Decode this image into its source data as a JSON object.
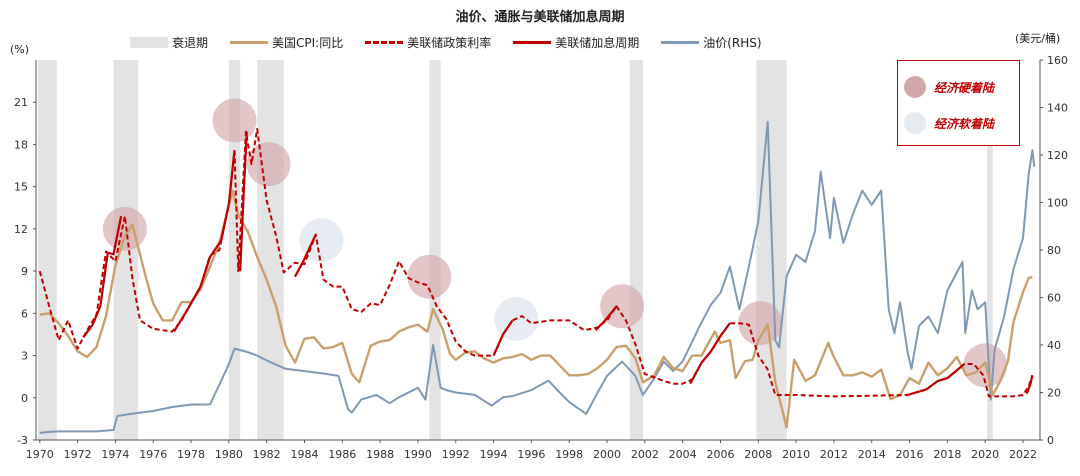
{
  "title": "油价、通胀与美联储加息周期",
  "units": {
    "left": "(%)",
    "right": "(美元/桶)"
  },
  "legend": [
    {
      "label": "衰退期",
      "kind": "bar",
      "color": "#e3e3e3"
    },
    {
      "label": "美国CPI:同比",
      "kind": "line",
      "color": "#c9a06c"
    },
    {
      "label": "美联储政策利率",
      "kind": "dash",
      "color": "#c00000"
    },
    {
      "label": "美联储加息周期",
      "kind": "line",
      "color": "#c00000"
    },
    {
      "label": "油价(RHS)",
      "kind": "line",
      "color": "#8099b3"
    }
  ],
  "annotation": {
    "hard_landing": "经济硬着陆",
    "soft_landing": "经济软着陆",
    "hard_color": "#d2a7ab",
    "soft_color": "#e6ebf1"
  },
  "chart_data": {
    "type": "line",
    "title": "油价、通胀与美联储加息周期",
    "x_range": [
      1969.8,
      2022.9
    ],
    "x_ticks": [
      "1970",
      "1972",
      "1974",
      "1976",
      "1978",
      "1980",
      "1982",
      "1984",
      "1986",
      "1988",
      "1990",
      "1992",
      "1994",
      "1996",
      "1998",
      "2000",
      "2002",
      "2004",
      "2006",
      "2008",
      "2010",
      "2012",
      "2014",
      "2016",
      "2018",
      "2020",
      "2022"
    ],
    "y_left": {
      "label": "(%)",
      "range": [
        -3,
        24
      ],
      "ticks": [
        -3,
        0,
        3,
        6,
        9,
        12,
        15,
        18,
        21
      ]
    },
    "y_right": {
      "label": "(美元/桶)",
      "range": [
        0,
        160
      ],
      "ticks": [
        0,
        20,
        40,
        60,
        80,
        100,
        120,
        140,
        160
      ]
    },
    "recessions": [
      [
        1969.9,
        1970.9
      ],
      [
        1973.9,
        1975.2
      ],
      [
        1980.0,
        1980.6
      ],
      [
        1981.5,
        1982.9
      ],
      [
        1990.6,
        1991.2
      ],
      [
        2001.2,
        2001.9
      ],
      [
        2007.9,
        2009.5
      ],
      [
        2020.1,
        2020.4
      ]
    ],
    "cpi_yoy": [
      [
        1970,
        5.9
      ],
      [
        1970.5,
        6
      ],
      [
        1971,
        5.3
      ],
      [
        1971.5,
        4.4
      ],
      [
        1972,
        3.3
      ],
      [
        1972.5,
        2.9
      ],
      [
        1973,
        3.6
      ],
      [
        1973.5,
        5.8
      ],
      [
        1974,
        9.4
      ],
      [
        1974.5,
        11.5
      ],
      [
        1974.9,
        12.3
      ],
      [
        1975.3,
        10.2
      ],
      [
        1975.6,
        8.6
      ],
      [
        1976,
        6.7
      ],
      [
        1976.5,
        5.5
      ],
      [
        1977,
        5.5
      ],
      [
        1977.5,
        6.8
      ],
      [
        1978,
        6.8
      ],
      [
        1978.5,
        7.7
      ],
      [
        1979,
        9.3
      ],
      [
        1979.5,
        11
      ],
      [
        1980.2,
        14.7
      ],
      [
        1980.5,
        13
      ],
      [
        1981,
        11.8
      ],
      [
        1981.5,
        10
      ],
      [
        1982,
        8.4
      ],
      [
        1982.5,
        6.5
      ],
      [
        1983,
        3.7
      ],
      [
        1983.5,
        2.5
      ],
      [
        1984,
        4.2
      ],
      [
        1984.5,
        4.3
      ],
      [
        1985,
        3.5
      ],
      [
        1985.5,
        3.6
      ],
      [
        1986,
        3.9
      ],
      [
        1986.5,
        1.7
      ],
      [
        1986.9,
        1.1
      ],
      [
        1987.5,
        3.7
      ],
      [
        1988,
        4
      ],
      [
        1988.5,
        4.1
      ],
      [
        1989,
        4.7
      ],
      [
        1989.5,
        5
      ],
      [
        1990,
        5.2
      ],
      [
        1990.5,
        4.7
      ],
      [
        1990.8,
        6.3
      ],
      [
        1991.3,
        4.9
      ],
      [
        1991.7,
        3.1
      ],
      [
        1992,
        2.7
      ],
      [
        1992.5,
        3.2
      ],
      [
        1993,
        3.3
      ],
      [
        1993.5,
        2.8
      ],
      [
        1994,
        2.5
      ],
      [
        1994.5,
        2.8
      ],
      [
        1995,
        2.9
      ],
      [
        1995.5,
        3.1
      ],
      [
        1996,
        2.7
      ],
      [
        1996.5,
        3
      ],
      [
        1997,
        3
      ],
      [
        1997.5,
        2.3
      ],
      [
        1998,
        1.6
      ],
      [
        1998.5,
        1.6
      ],
      [
        1999,
        1.7
      ],
      [
        1999.5,
        2.1
      ],
      [
        2000,
        2.7
      ],
      [
        2000.5,
        3.6
      ],
      [
        2001,
        3.7
      ],
      [
        2001.5,
        2.8
      ],
      [
        2001.9,
        1.1
      ],
      [
        2002.5,
        1.6
      ],
      [
        2003,
        2.9
      ],
      [
        2003.5,
        2.1
      ],
      [
        2004,
        1.9
      ],
      [
        2004.5,
        3
      ],
      [
        2005,
        3
      ],
      [
        2005.7,
        4.7
      ],
      [
        2006,
        3.9
      ],
      [
        2006.5,
        4.1
      ],
      [
        2006.8,
        1.4
      ],
      [
        2007.3,
        2.6
      ],
      [
        2007.7,
        2.7
      ],
      [
        2008,
        4.1
      ],
      [
        2008.5,
        5.2
      ],
      [
        2008.9,
        1.1
      ],
      [
        2009.5,
        -2.1
      ],
      [
        2009.9,
        2.7
      ],
      [
        2010.5,
        1.2
      ],
      [
        2011,
        1.6
      ],
      [
        2011.7,
        3.9
      ],
      [
        2012,
        2.9
      ],
      [
        2012.5,
        1.6
      ],
      [
        2013,
        1.6
      ],
      [
        2013.5,
        1.8
      ],
      [
        2014,
        1.5
      ],
      [
        2014.5,
        2
      ],
      [
        2015,
        -0.1
      ],
      [
        2015.5,
        0.2
      ],
      [
        2016,
        1.4
      ],
      [
        2016.5,
        1
      ],
      [
        2017,
        2.5
      ],
      [
        2017.5,
        1.6
      ],
      [
        2018,
        2.1
      ],
      [
        2018.5,
        2.9
      ],
      [
        2019,
        1.6
      ],
      [
        2019.5,
        1.8
      ],
      [
        2020,
        2.5
      ],
      [
        2020.4,
        0.2
      ],
      [
        2020.8,
        1.2
      ],
      [
        2021.2,
        2.6
      ],
      [
        2021.5,
        5.4
      ],
      [
        2022,
        7.5
      ],
      [
        2022.3,
        8.5
      ],
      [
        2022.5,
        8.6
      ]
    ],
    "policy_rate": [
      [
        1970,
        9
      ],
      [
        1970.5,
        6.5
      ],
      [
        1971,
        4.1
      ],
      [
        1971.5,
        5.5
      ],
      [
        1972,
        3.5
      ],
      [
        1972.5,
        4.8
      ],
      [
        1973,
        5.9
      ],
      [
        1973.5,
        10.4
      ],
      [
        1974,
        9.7
      ],
      [
        1974.5,
        12.9
      ],
      [
        1974.9,
        8.5
      ],
      [
        1975.3,
        5.5
      ],
      [
        1976,
        4.9
      ],
      [
        1977,
        4.7
      ],
      [
        1977.5,
        5.5
      ],
      [
        1978,
        6.7
      ],
      [
        1978.5,
        7.9
      ],
      [
        1979,
        10.1
      ],
      [
        1979.5,
        10.5
      ],
      [
        1980,
        13.8
      ],
      [
        1980.3,
        17.6
      ],
      [
        1980.5,
        9
      ],
      [
        1980.9,
        18.9
      ],
      [
        1981.2,
        16.6
      ],
      [
        1981.5,
        19.1
      ],
      [
        1982,
        14
      ],
      [
        1982.5,
        11.5
      ],
      [
        1982.9,
        8.9
      ],
      [
        1983.5,
        9.6
      ],
      [
        1984,
        9.5
      ],
      [
        1984.6,
        11.6
      ],
      [
        1985,
        8.4
      ],
      [
        1985.5,
        7.9
      ],
      [
        1986,
        7.9
      ],
      [
        1986.5,
        6.3
      ],
      [
        1987,
        6.1
      ],
      [
        1987.5,
        6.7
      ],
      [
        1988,
        6.6
      ],
      [
        1988.5,
        8
      ],
      [
        1989,
        9.7
      ],
      [
        1989.5,
        8.5
      ],
      [
        1990,
        8.2
      ],
      [
        1990.5,
        8
      ],
      [
        1991,
        6.5
      ],
      [
        1991.5,
        5.6
      ],
      [
        1992,
        4
      ],
      [
        1992.5,
        3.3
      ],
      [
        1993,
        3
      ],
      [
        1994,
        3
      ],
      [
        1994.5,
        4.5
      ],
      [
        1995,
        5.5
      ],
      [
        1995.5,
        5.8
      ],
      [
        1996,
        5.3
      ],
      [
        1997,
        5.5
      ],
      [
        1998,
        5.5
      ],
      [
        1998.8,
        4.8
      ],
      [
        1999.5,
        5
      ],
      [
        2000,
        5.5
      ],
      [
        2000.5,
        6.5
      ],
      [
        2001,
        5.5
      ],
      [
        2001.5,
        3.8
      ],
      [
        2002,
        1.7
      ],
      [
        2003,
        1.2
      ],
      [
        2003.5,
        1
      ],
      [
        2004,
        1
      ],
      [
        2004.5,
        1.3
      ],
      [
        2005,
        2.5
      ],
      [
        2005.5,
        3.3
      ],
      [
        2006,
        4.4
      ],
      [
        2006.5,
        5.3
      ],
      [
        2007,
        5.3
      ],
      [
        2007.5,
        5.2
      ],
      [
        2008,
        3
      ],
      [
        2008.5,
        2
      ],
      [
        2008.9,
        0.2
      ],
      [
        2010,
        0.2
      ],
      [
        2012,
        0.1
      ],
      [
        2015.9,
        0.2
      ],
      [
        2016.9,
        0.6
      ],
      [
        2017.5,
        1.2
      ],
      [
        2018,
        1.4
      ],
      [
        2018.9,
        2.4
      ],
      [
        2019.4,
        2.4
      ],
      [
        2019.9,
        1.6
      ],
      [
        2020.2,
        0.1
      ],
      [
        2021.5,
        0.1
      ],
      [
        2022,
        0.2
      ],
      [
        2022.3,
        0.8
      ],
      [
        2022.5,
        1.6
      ]
    ],
    "hiking_cycles": [
      [
        [
          1972.3,
          4.3
        ],
        [
          1972.8,
          5.2
        ],
        [
          1973.2,
          6.5
        ],
        [
          1973.6,
          10.3
        ],
        [
          1973.9,
          10.2
        ],
        [
          1974.3,
          12.9
        ]
      ],
      [
        [
          1977.1,
          4.7
        ],
        [
          1977.6,
          5.8
        ],
        [
          1978,
          6.7
        ],
        [
          1978.5,
          7.9
        ],
        [
          1979,
          10
        ],
        [
          1979.6,
          11.2
        ],
        [
          1980,
          13.8
        ],
        [
          1980.3,
          17.6
        ]
      ],
      [
        [
          1980.6,
          9
        ],
        [
          1980.8,
          15
        ],
        [
          1980.95,
          18.9
        ]
      ],
      [
        [
          1983.5,
          8.6
        ],
        [
          1983.9,
          9.6
        ],
        [
          1984.6,
          11.6
        ]
      ],
      [
        [
          1994,
          3
        ],
        [
          1994.5,
          4.5
        ],
        [
          1995,
          5.5
        ]
      ],
      [
        [
          1999.4,
          4.8
        ],
        [
          1999.9,
          5.5
        ],
        [
          2000.5,
          6.5
        ]
      ],
      [
        [
          2004.4,
          1
        ],
        [
          2005,
          2.5
        ],
        [
          2005.5,
          3.3
        ],
        [
          2006,
          4.4
        ],
        [
          2006.5,
          5.3
        ]
      ],
      [
        [
          2015.9,
          0.2
        ],
        [
          2016.9,
          0.6
        ],
        [
          2017.5,
          1.2
        ],
        [
          2018,
          1.4
        ],
        [
          2018.9,
          2.4
        ]
      ],
      [
        [
          2022.2,
          0.3
        ],
        [
          2022.4,
          1
        ],
        [
          2022.5,
          1.6
        ]
      ]
    ],
    "oil_rhs": [
      [
        1970,
        3
      ],
      [
        1970.5,
        3.4
      ],
      [
        1971,
        3.6
      ],
      [
        1972,
        3.6
      ],
      [
        1973,
        3.6
      ],
      [
        1973.9,
        4.2
      ],
      [
        1974.1,
        10.1
      ],
      [
        1975,
        11.2
      ],
      [
        1976,
        12.2
      ],
      [
        1977,
        13.9
      ],
      [
        1978,
        14.9
      ],
      [
        1979,
        15
      ],
      [
        1979.6,
        25
      ],
      [
        1980,
        32
      ],
      [
        1980.3,
        38.5
      ],
      [
        1981,
        37
      ],
      [
        1981.5,
        35.5
      ],
      [
        1982,
        33.5
      ],
      [
        1983,
        30
      ],
      [
        1984,
        29
      ],
      [
        1985,
        28
      ],
      [
        1985.8,
        27
      ],
      [
        1986.3,
        13
      ],
      [
        1986.5,
        11.5
      ],
      [
        1987,
        17
      ],
      [
        1987.8,
        19
      ],
      [
        1988.5,
        15.5
      ],
      [
        1989,
        18
      ],
      [
        1990,
        22
      ],
      [
        1990.4,
        17
      ],
      [
        1990.8,
        40
      ],
      [
        1991.2,
        22
      ],
      [
        1991.5,
        21
      ],
      [
        1992,
        20
      ],
      [
        1993,
        19
      ],
      [
        1993.9,
        14.5
      ],
      [
        1994.5,
        18
      ],
      [
        1995,
        18.5
      ],
      [
        1996,
        21
      ],
      [
        1996.9,
        25
      ],
      [
        1997.5,
        20
      ],
      [
        1998,
        16
      ],
      [
        1998.9,
        11
      ],
      [
        1999.5,
        20
      ],
      [
        2000,
        27
      ],
      [
        2000.8,
        33
      ],
      [
        2001.5,
        27
      ],
      [
        2001.9,
        19
      ],
      [
        2002.5,
        26
      ],
      [
        2003,
        33
      ],
      [
        2003.5,
        29
      ],
      [
        2004,
        33
      ],
      [
        2004.9,
        48
      ],
      [
        2005.5,
        57
      ],
      [
        2006,
        62
      ],
      [
        2006.5,
        73
      ],
      [
        2007,
        55
      ],
      [
        2007.5,
        73
      ],
      [
        2008,
        92
      ],
      [
        2008.5,
        134
      ],
      [
        2008.9,
        42
      ],
      [
        2009.1,
        39
      ],
      [
        2009.5,
        69
      ],
      [
        2010,
        78
      ],
      [
        2010.5,
        75
      ],
      [
        2011,
        88
      ],
      [
        2011.3,
        113
      ],
      [
        2011.8,
        85
      ],
      [
        2012,
        102
      ],
      [
        2012.5,
        83
      ],
      [
        2013,
        95
      ],
      [
        2013.5,
        105
      ],
      [
        2014,
        99
      ],
      [
        2014.5,
        105
      ],
      [
        2014.9,
        55
      ],
      [
        2015.2,
        45
      ],
      [
        2015.5,
        58
      ],
      [
        2015.9,
        37
      ],
      [
        2016.1,
        30
      ],
      [
        2016.5,
        48
      ],
      [
        2017,
        52
      ],
      [
        2017.5,
        45
      ],
      [
        2018,
        63
      ],
      [
        2018.8,
        75
      ],
      [
        2018.95,
        45
      ],
      [
        2019.3,
        63
      ],
      [
        2019.6,
        55
      ],
      [
        2020,
        58
      ],
      [
        2020.3,
        17
      ],
      [
        2020.5,
        38
      ],
      [
        2021,
        52
      ],
      [
        2021.5,
        72
      ],
      [
        2022,
        85
      ],
      [
        2022.3,
        112
      ],
      [
        2022.5,
        122
      ],
      [
        2022.6,
        115
      ]
    ],
    "hard_landing_markers": [
      [
        1974.5,
        12
      ],
      [
        1980.3,
        19.7
      ],
      [
        1982.1,
        16.6
      ],
      [
        1990.6,
        8.6
      ],
      [
        2000.8,
        6.5
      ],
      [
        2008.1,
        5.3
      ],
      [
        2020,
        2.3
      ]
    ],
    "soft_landing_markers": [
      [
        1984.9,
        11.2
      ],
      [
        1995.2,
        5.6
      ]
    ]
  }
}
